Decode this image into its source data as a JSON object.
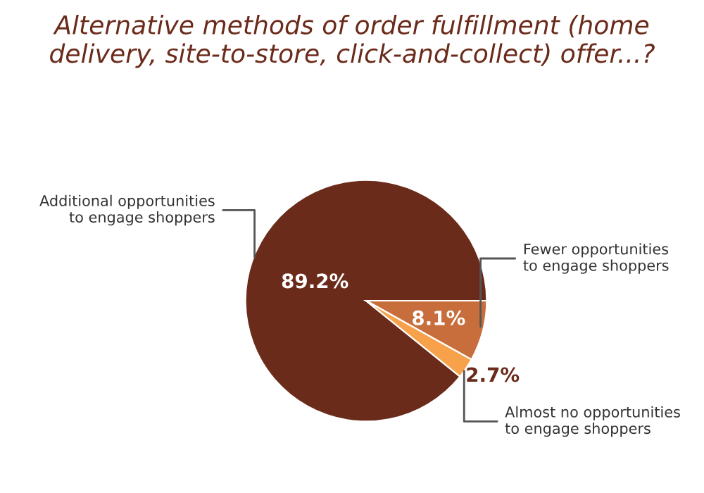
{
  "chart_data": {
    "type": "pie",
    "title": "Alternative methods of order fulfillment (home delivery, site-to-store, click-and-collect) offer...?",
    "categories": [
      "Additional opportunities\nto engage shoppers",
      "Fewer opportunities\nto engage shoppers",
      "Almost no opportunities\nto engage shoppers"
    ],
    "values": [
      89.2,
      8.1,
      2.7
    ],
    "colors": [
      "#6b2b1b",
      "#c86e3c",
      "#f7a14a"
    ],
    "value_labels": [
      "89.2%",
      "8.1%",
      "2.7%"
    ]
  }
}
